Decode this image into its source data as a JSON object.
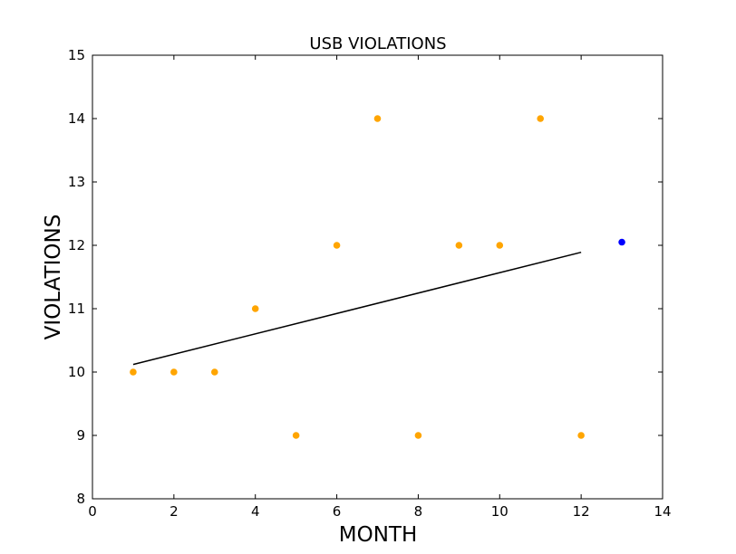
{
  "chart_data": {
    "type": "scatter",
    "title": "USB VIOLATIONS",
    "xlabel": "MONTH",
    "ylabel": "VIOLATIONS",
    "xlim": [
      0,
      14
    ],
    "ylim": [
      8,
      15
    ],
    "xticks": [
      "0",
      "2",
      "4",
      "6",
      "8",
      "10",
      "12",
      "14"
    ],
    "yticks": [
      "8",
      "9",
      "10",
      "11",
      "12",
      "13",
      "14",
      "15"
    ],
    "grid": false,
    "series": [
      {
        "kind": "scatter",
        "color": "#FFA500",
        "points": [
          {
            "x": 1,
            "y": 10
          },
          {
            "x": 2,
            "y": 10
          },
          {
            "x": 3,
            "y": 10
          },
          {
            "x": 4,
            "y": 11
          },
          {
            "x": 5,
            "y": 9
          },
          {
            "x": 6,
            "y": 12
          },
          {
            "x": 7,
            "y": 14
          },
          {
            "x": 8,
            "y": 9
          },
          {
            "x": 9,
            "y": 12
          },
          {
            "x": 10,
            "y": 12
          },
          {
            "x": 11,
            "y": 14
          },
          {
            "x": 12,
            "y": 9
          }
        ]
      },
      {
        "kind": "line",
        "color": "#000000",
        "points": [
          {
            "x": 1,
            "y": 10.12
          },
          {
            "x": 12,
            "y": 11.89
          }
        ]
      },
      {
        "kind": "scatter",
        "color": "#0000FF",
        "points": [
          {
            "x": 13,
            "y": 12.05
          }
        ]
      }
    ]
  }
}
